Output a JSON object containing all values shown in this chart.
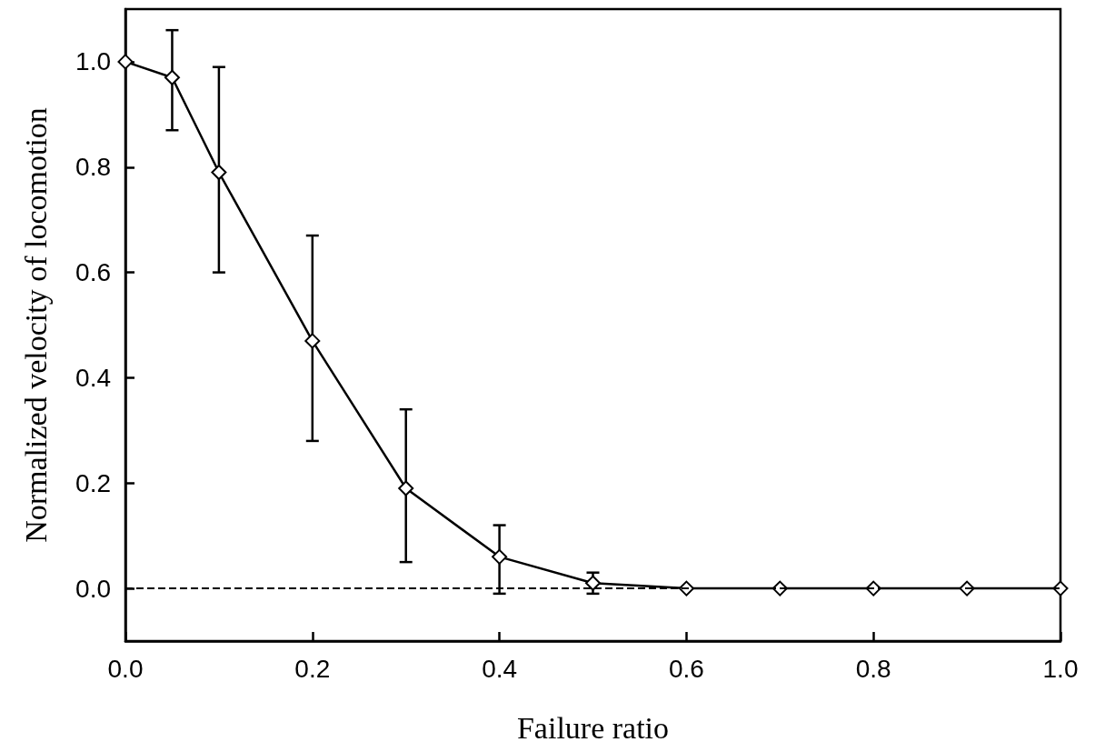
{
  "chart_data": {
    "type": "line",
    "xlabel": "Failure ratio",
    "ylabel": "Normalized velocity of locomotion",
    "x": [
      0,
      0.05,
      0.1,
      0.2,
      0.3,
      0.4,
      0.5,
      0.6,
      0.7,
      0.8,
      0.9,
      1.0
    ],
    "series": [
      {
        "color": "#000000",
        "values": [
          1.0,
          0.97,
          0.79,
          0.47,
          0.19,
          0.06,
          0.01,
          0,
          0,
          0,
          0,
          0
        ],
        "errors": [
          null,
          [
            0.87,
            1.06
          ],
          [
            0.6,
            0.99
          ],
          [
            0.28,
            0.67
          ],
          [
            0.05,
            0.34
          ],
          [
            -0.01,
            0.12
          ],
          [
            -0.01,
            0.03
          ],
          null,
          null,
          null,
          null,
          null
        ]
      }
    ],
    "xlim": [
      0,
      1.0
    ],
    "xticks": [
      {
        "value": 0,
        "label": "0.0"
      },
      0.2,
      0.4,
      0.6,
      0.8,
      {
        "value": 1.0,
        "label": "1.0"
      }
    ],
    "ylim": [
      -0.1,
      1.1
    ],
    "yticks": [
      {
        "value": 0,
        "label": "0.0"
      },
      0.2,
      0.4,
      0.6,
      0.8,
      {
        "value": 1.0,
        "label": "1.0"
      }
    ],
    "ref_lines": [
      {
        "axis": "y",
        "value": 0,
        "color": "#000000",
        "line_style": "dashed"
      }
    ],
    "marker": "diamond",
    "line_style": "solid",
    "grid": false
  }
}
